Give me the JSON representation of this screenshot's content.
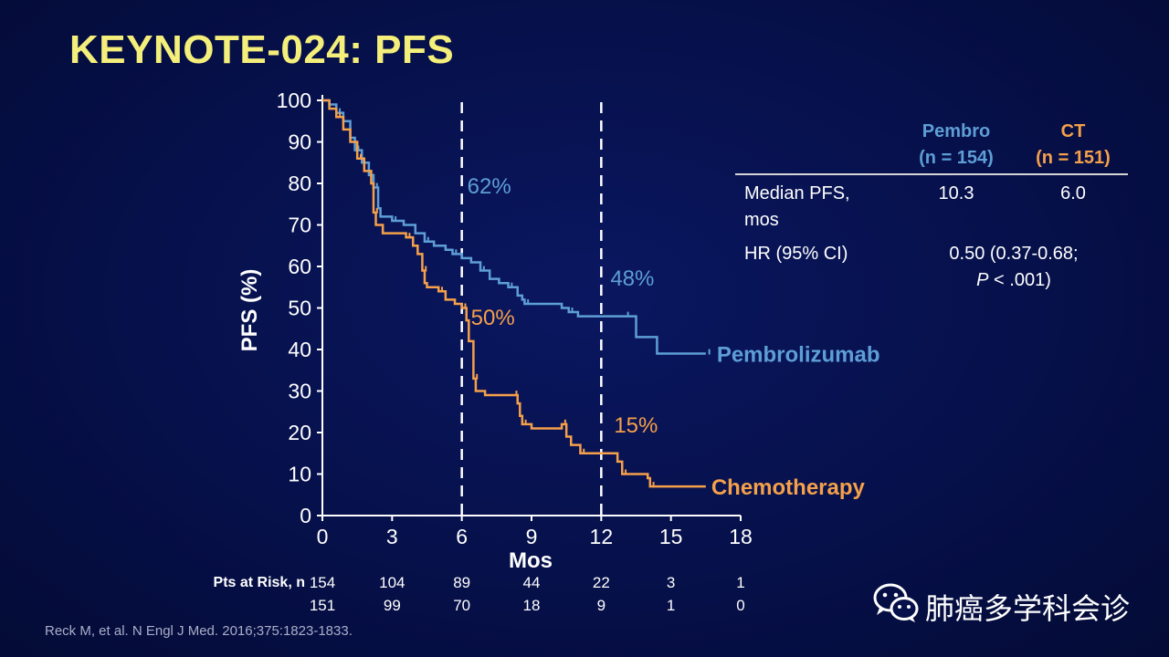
{
  "title": "KEYNOTE-024: PFS",
  "chart_data": {
    "type": "line",
    "title": "KEYNOTE-024: PFS",
    "ylabel": "PFS (%)",
    "xlabel": "Mos",
    "xlim": [
      0,
      18
    ],
    "ylim": [
      0,
      100
    ],
    "xticks": [
      0,
      3,
      6,
      9,
      12,
      15,
      18
    ],
    "yticks": [
      0,
      10,
      20,
      30,
      40,
      50,
      60,
      70,
      80,
      90,
      100
    ],
    "reference_lines_x": [
      6,
      12
    ],
    "series": [
      {
        "name": "Pembrolizumab",
        "color": "#5e9ed6",
        "points": [
          [
            0,
            100
          ],
          [
            0.3,
            99
          ],
          [
            0.6,
            97
          ],
          [
            0.9,
            95
          ],
          [
            1.2,
            91
          ],
          [
            1.4,
            88
          ],
          [
            1.7,
            85
          ],
          [
            2.0,
            82
          ],
          [
            2.2,
            79
          ],
          [
            2.4,
            74
          ],
          [
            2.5,
            72
          ],
          [
            3.0,
            71
          ],
          [
            3.5,
            70
          ],
          [
            4.0,
            68
          ],
          [
            4.4,
            66
          ],
          [
            4.8,
            65
          ],
          [
            5.3,
            64
          ],
          [
            5.6,
            63
          ],
          [
            6.0,
            62
          ],
          [
            6.4,
            61
          ],
          [
            6.8,
            59
          ],
          [
            7.2,
            57
          ],
          [
            7.6,
            56
          ],
          [
            8.0,
            55
          ],
          [
            8.4,
            53
          ],
          [
            8.6,
            52
          ],
          [
            8.7,
            51
          ],
          [
            9.5,
            51
          ],
          [
            10.3,
            50
          ],
          [
            10.6,
            49
          ],
          [
            11.0,
            48
          ],
          [
            12.0,
            48
          ],
          [
            13.0,
            48
          ],
          [
            13.5,
            43
          ],
          [
            14.4,
            39
          ],
          [
            16.5,
            39
          ]
        ],
        "callouts": [
          {
            "x": 6,
            "label": "62%"
          },
          {
            "x": 12,
            "label": "48%"
          }
        ]
      },
      {
        "name": "Chemotherapy",
        "color": "#f5a04a",
        "points": [
          [
            0,
            100
          ],
          [
            0.3,
            98
          ],
          [
            0.6,
            96
          ],
          [
            0.9,
            93
          ],
          [
            1.2,
            90
          ],
          [
            1.5,
            86
          ],
          [
            1.8,
            83
          ],
          [
            2.1,
            80
          ],
          [
            2.2,
            73
          ],
          [
            2.3,
            70
          ],
          [
            2.6,
            68
          ],
          [
            3.6,
            67
          ],
          [
            3.9,
            65
          ],
          [
            4.1,
            63
          ],
          [
            4.3,
            59
          ],
          [
            4.4,
            56
          ],
          [
            4.5,
            55
          ],
          [
            5.0,
            54
          ],
          [
            5.3,
            52
          ],
          [
            5.7,
            51
          ],
          [
            6.0,
            50
          ],
          [
            6.2,
            47
          ],
          [
            6.3,
            42
          ],
          [
            6.5,
            33
          ],
          [
            6.6,
            30
          ],
          [
            7.0,
            29
          ],
          [
            8.2,
            29
          ],
          [
            8.4,
            27
          ],
          [
            8.5,
            24
          ],
          [
            8.6,
            22
          ],
          [
            9.0,
            21
          ],
          [
            9.5,
            21
          ],
          [
            10.3,
            22
          ],
          [
            10.5,
            19
          ],
          [
            10.7,
            17
          ],
          [
            11.1,
            15
          ],
          [
            12.5,
            15
          ],
          [
            12.7,
            13
          ],
          [
            12.9,
            10
          ],
          [
            13.8,
            10
          ],
          [
            14.0,
            9
          ],
          [
            14.1,
            7
          ],
          [
            15.0,
            7
          ],
          [
            16.5,
            7
          ]
        ],
        "callouts": [
          {
            "x": 6,
            "label": "50%"
          },
          {
            "x": 12,
            "label": "15%"
          }
        ]
      }
    ],
    "at_risk": {
      "label": "Pts at Risk, n",
      "times": [
        0,
        3,
        6,
        9,
        12,
        15,
        18
      ],
      "rows": [
        [
          154,
          104,
          89,
          44,
          22,
          3,
          1
        ],
        [
          151,
          99,
          70,
          18,
          9,
          1,
          0
        ]
      ]
    }
  },
  "stats": {
    "pembro_header": [
      "Pembro",
      "(n = 154)"
    ],
    "ct_header": [
      "CT",
      "(n = 151)"
    ],
    "rows": [
      {
        "label": [
          "Median PFS,",
          "mos"
        ],
        "pembro": "10.3",
        "ct": "6.0"
      },
      {
        "label": [
          "HR (95% CI)"
        ],
        "combined": [
          "0.50 (0.37-0.68;",
          "P < .001)"
        ]
      }
    ]
  },
  "footer": "Reck M, et al. N Engl J Med. 2016;375:1823-1833.",
  "watermark": {
    "text": "肺癌多学科会诊",
    "icon": "wechat-icon"
  }
}
